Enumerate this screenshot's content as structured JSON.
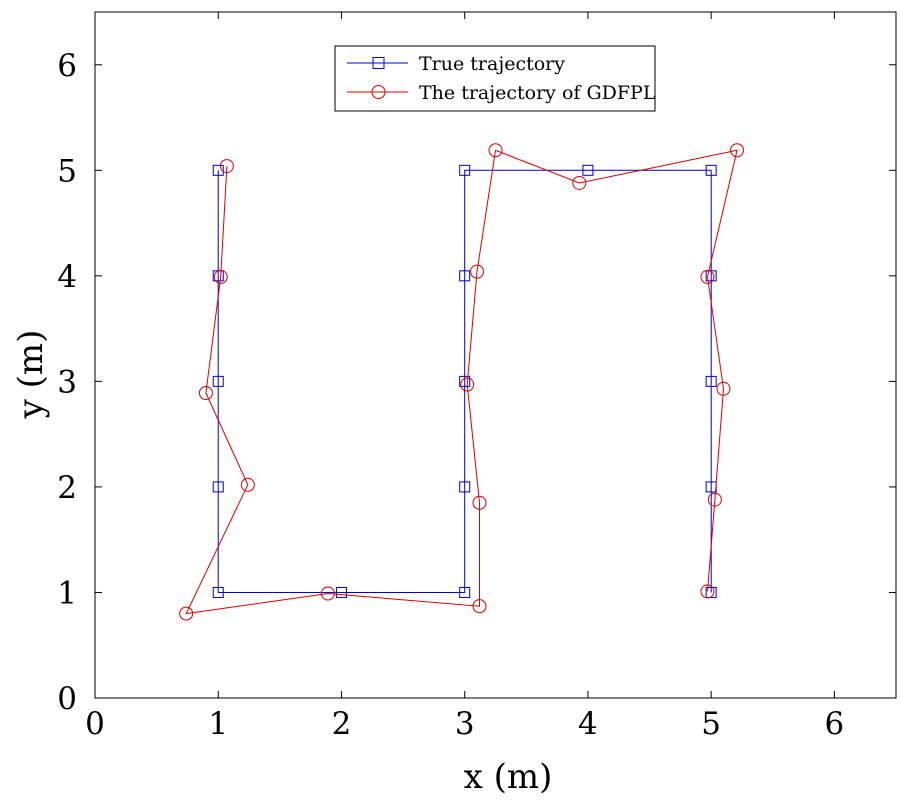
{
  "chart_data": {
    "type": "line",
    "xlabel": "x (m)",
    "ylabel": "y (m)",
    "xlim": [
      0,
      6.5
    ],
    "ylim": [
      0,
      6.5
    ],
    "xticks": [
      0,
      1,
      2,
      3,
      4,
      5,
      6
    ],
    "yticks": [
      0,
      1,
      2,
      3,
      4,
      5,
      6
    ],
    "grid": false,
    "legend_position": "top-center",
    "series": [
      {
        "name": "True trajectory",
        "color": "#0000cc",
        "marker": "square",
        "points": [
          [
            1,
            5
          ],
          [
            1,
            4
          ],
          [
            1,
            3
          ],
          [
            1,
            2
          ],
          [
            1,
            1
          ],
          [
            2,
            1
          ],
          [
            3,
            1
          ],
          [
            3,
            2
          ],
          [
            3,
            3
          ],
          [
            3,
            4
          ],
          [
            3,
            5
          ],
          [
            4,
            5
          ],
          [
            5,
            5
          ],
          [
            5,
            4
          ],
          [
            5,
            3
          ],
          [
            5,
            2
          ],
          [
            5,
            1
          ]
        ]
      },
      {
        "name": "The trajectory of GDFPL",
        "color": "#dd0000",
        "marker": "circle",
        "points": [
          [
            1.07,
            5.04
          ],
          [
            1.02,
            3.99
          ],
          [
            0.9,
            2.89
          ],
          [
            1.24,
            2.02
          ],
          [
            0.74,
            0.8
          ],
          [
            1.89,
            0.99
          ],
          [
            3.12,
            0.87
          ],
          [
            3.12,
            1.85
          ],
          [
            3.02,
            2.97
          ],
          [
            3.1,
            4.04
          ],
          [
            3.25,
            5.19
          ],
          [
            3.93,
            4.88
          ],
          [
            5.21,
            5.19
          ],
          [
            4.97,
            3.99
          ],
          [
            5.1,
            2.93
          ],
          [
            5.03,
            1.88
          ],
          [
            4.97,
            1.01
          ]
        ]
      }
    ]
  }
}
